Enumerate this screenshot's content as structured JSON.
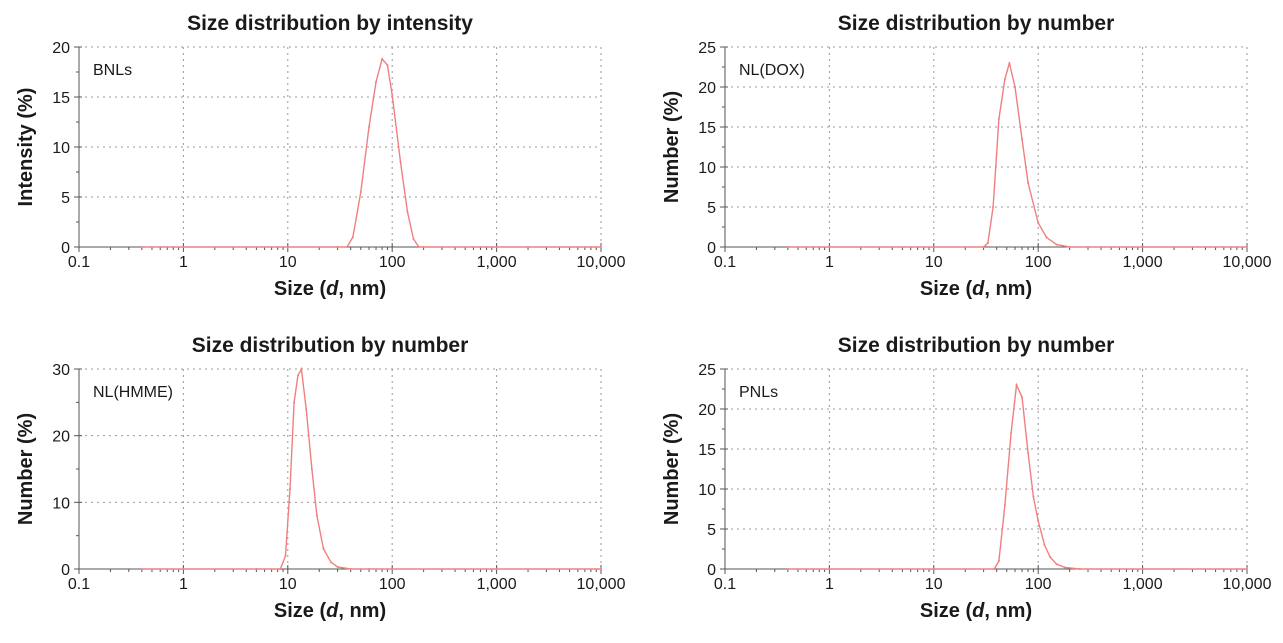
{
  "chart_data": [
    {
      "type": "line",
      "title": "Size distribution by intensity",
      "sample_label": "BNLs",
      "xlabel": "Size (d, nm)",
      "ylabel": "Intensity (%)",
      "xscale": "log",
      "xlim": [
        0.1,
        10000
      ],
      "ylim": [
        0,
        20
      ],
      "xticks": [
        0.1,
        1,
        10,
        100,
        1000,
        10000
      ],
      "xtick_labels": [
        "0.1",
        "1",
        "10",
        "100",
        "1,000",
        "10,000"
      ],
      "yticks": [
        0,
        5,
        10,
        15,
        20
      ],
      "grid": true,
      "series": [
        {
          "color": "#f08080",
          "x": [
            0.4,
            1,
            10,
            30,
            37,
            42,
            50,
            60,
            70,
            80,
            90,
            100,
            120,
            140,
            160,
            180,
            200,
            1000,
            10000
          ],
          "y": [
            0,
            0,
            0,
            0,
            0,
            1.0,
            5.5,
            12.0,
            16.5,
            18.8,
            18.2,
            15.2,
            8.5,
            3.5,
            0.8,
            0,
            0,
            0,
            0
          ]
        }
      ]
    },
    {
      "type": "line",
      "title": "Size distribution by number",
      "sample_label": "NL(DOX)",
      "xlabel": "Size (d, nm)",
      "ylabel": "Number (%)",
      "xscale": "log",
      "xlim": [
        0.1,
        10000
      ],
      "ylim": [
        0,
        25
      ],
      "xticks": [
        0.1,
        1,
        10,
        100,
        1000,
        10000
      ],
      "xtick_labels": [
        "0.1",
        "1",
        "10",
        "100",
        "1,000",
        "10,000"
      ],
      "yticks": [
        0,
        5,
        10,
        15,
        20,
        25
      ],
      "grid": true,
      "series": [
        {
          "color": "#f08080",
          "x": [
            0.4,
            1,
            10,
            30,
            33,
            37,
            42,
            48,
            53,
            60,
            70,
            80,
            100,
            120,
            150,
            200,
            1000,
            10000
          ],
          "y": [
            0,
            0,
            0,
            0,
            0.5,
            5,
            16,
            21,
            23,
            20,
            13.5,
            8,
            3,
            1.2,
            0.3,
            0,
            0,
            0
          ]
        }
      ]
    },
    {
      "type": "line",
      "title": "Size distribution by number",
      "sample_label": "NL(HMME)",
      "xlabel": "Size (d, nm)",
      "ylabel": "Number (%)",
      "xscale": "log",
      "xlim": [
        0.1,
        10000
      ],
      "ylim": [
        0,
        30
      ],
      "xticks": [
        0.1,
        1,
        10,
        100,
        1000,
        10000
      ],
      "xtick_labels": [
        "0.1",
        "1",
        "10",
        "100",
        "1,000",
        "10,000"
      ],
      "yticks": [
        0,
        10,
        20,
        30
      ],
      "grid": true,
      "series": [
        {
          "color": "#f08080",
          "x": [
            0.4,
            1,
            5,
            8.5,
            9.5,
            10.5,
            11.5,
            12.5,
            13.5,
            15,
            17,
            19,
            22,
            26,
            30,
            40,
            60,
            100,
            1000,
            10000
          ],
          "y": [
            0,
            0,
            0,
            0,
            2,
            12,
            25,
            29,
            30,
            24,
            15,
            8,
            3,
            1,
            0.3,
            0,
            0,
            0,
            0,
            0
          ]
        }
      ]
    },
    {
      "type": "line",
      "title": "Size distribution by number",
      "sample_label": "PNLs",
      "xlabel": "Size (d, nm)",
      "ylabel": "Number (%)",
      "xscale": "log",
      "xlim": [
        0.1,
        10000
      ],
      "ylim": [
        0,
        25
      ],
      "xticks": [
        0.1,
        1,
        10,
        100,
        1000,
        10000
      ],
      "xtick_labels": [
        "0.1",
        "1",
        "10",
        "100",
        "1,000",
        "10,000"
      ],
      "yticks": [
        0,
        5,
        10,
        15,
        20,
        25
      ],
      "grid": true,
      "series": [
        {
          "color": "#f08080",
          "x": [
            0.4,
            1,
            10,
            38,
            42,
            48,
            55,
            62,
            70,
            80,
            90,
            100,
            115,
            130,
            150,
            180,
            250,
            1000,
            10000
          ],
          "y": [
            0,
            0,
            0,
            0,
            1,
            8,
            17,
            23,
            21.5,
            14.5,
            9,
            6,
            3,
            1.5,
            0.6,
            0.2,
            0,
            0,
            0
          ]
        }
      ]
    }
  ]
}
